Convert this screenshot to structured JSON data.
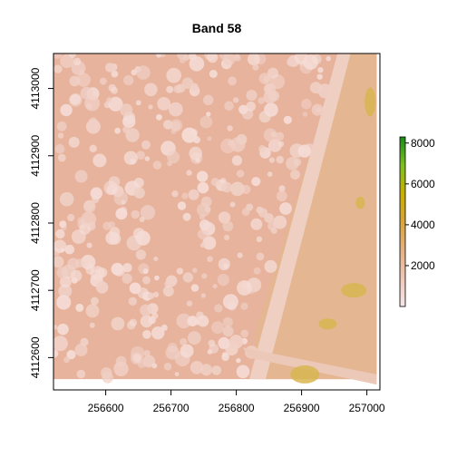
{
  "chart_data": {
    "type": "heatmap",
    "title": "Band 58",
    "xlabel": "",
    "ylabel": "",
    "xlim": [
      256520,
      257020
    ],
    "ylim": [
      4112552,
      4113052
    ],
    "x_ticks": [
      256600,
      256700,
      256800,
      256900,
      257000
    ],
    "y_ticks": [
      4112600,
      4112700,
      4112800,
      4112900,
      4113000
    ],
    "x_tick_labels": [
      "256600",
      "256700",
      "256800",
      "256900",
      "257000"
    ],
    "y_tick_labels": [
      "4112600",
      "4112700",
      "4112800",
      "4112900",
      "4113000"
    ],
    "colorbar": {
      "range": [
        0,
        8300
      ],
      "ticks": [
        2000,
        4000,
        6000,
        8000
      ],
      "tick_labels": [
        "2000",
        "4000",
        "6000",
        "8000"
      ],
      "colors": [
        "#f4e8e8",
        "#efc7b8",
        "#e6b080",
        "#d9a53a",
        "#c8b000",
        "#7cc020",
        "#1a8a1a"
      ]
    },
    "image_extent": {
      "x": [
        256520,
        257015
      ],
      "y": [
        4112568,
        4113052
      ]
    },
    "surface_description": "tree canopy and ground reflectance; road running diagonally on right side",
    "grid": false
  }
}
